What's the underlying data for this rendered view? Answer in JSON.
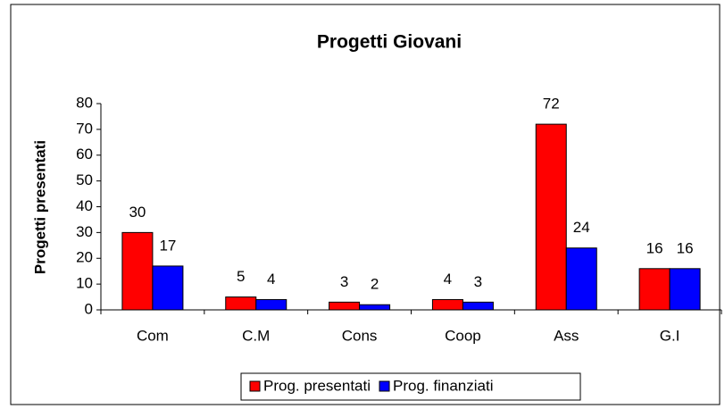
{
  "chart_data": {
    "type": "bar",
    "title": "Progetti Giovani",
    "ylabel": "Progetti presentati",
    "categories": [
      "Com",
      "C.M",
      "Cons",
      "Coop",
      "Ass",
      "G.I"
    ],
    "series": [
      {
        "name": "Prog. presentati",
        "color": "#ff0000",
        "values": [
          30,
          5,
          3,
          4,
          72,
          16
        ]
      },
      {
        "name": "Prog. finanziati",
        "color": "#0000ff",
        "values": [
          17,
          4,
          2,
          3,
          24,
          16
        ]
      }
    ],
    "ylim": [
      0,
      80
    ],
    "yticks": [
      0,
      10,
      20,
      30,
      40,
      50,
      60,
      70,
      80
    ],
    "legend": "bottom"
  }
}
